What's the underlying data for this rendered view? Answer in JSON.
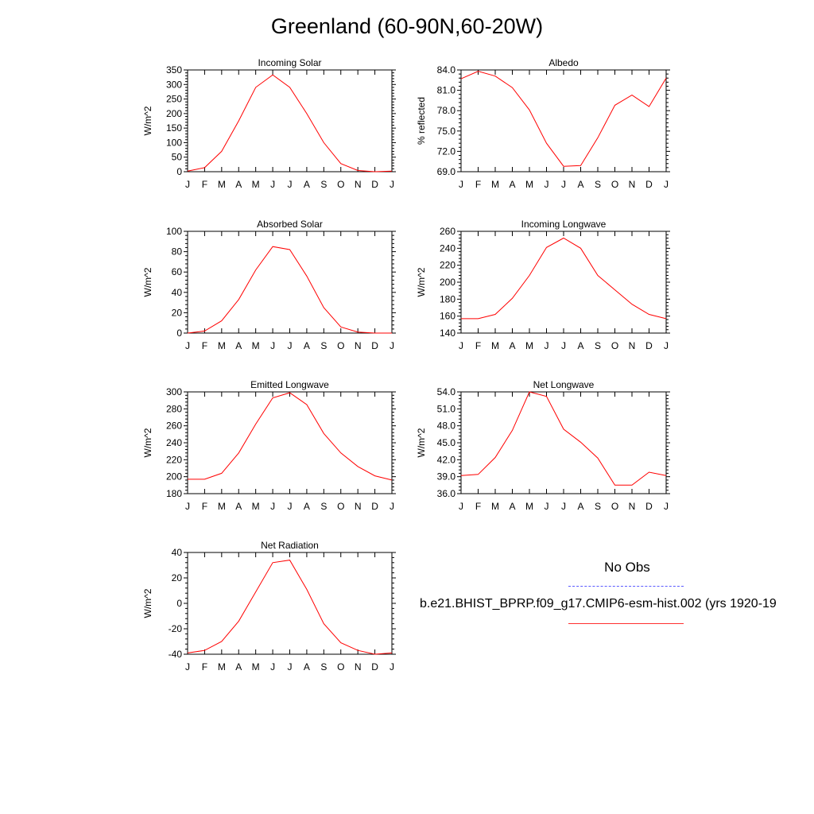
{
  "figure": {
    "title": "Greenland (60-90N,60-20W)"
  },
  "legend": {
    "title": "No Obs",
    "run_label": "b.e21.BHIST_BPRP.f09_g17.CMIP6-esm-hist.002 (yrs 1920-19",
    "run_color": "#ff0000",
    "obs_color": "#5a5aff"
  },
  "chart_data": [
    {
      "type": "line",
      "title": "Incoming Solar",
      "ylabel": "W/m^2",
      "categories": [
        "J",
        "F",
        "M",
        "A",
        "M",
        "J",
        "J",
        "A",
        "S",
        "O",
        "N",
        "D",
        "J"
      ],
      "ylim": [
        0,
        350
      ],
      "yticks": [
        0,
        50,
        100,
        150,
        200,
        250,
        300,
        350
      ],
      "ytick_labels": [
        "0",
        "50",
        "100",
        "150",
        "200",
        "250",
        "300",
        "350"
      ],
      "series": [
        {
          "values": [
            2,
            14,
            70,
            175,
            290,
            333,
            290,
            200,
            100,
            28,
            4,
            0,
            2
          ]
        }
      ]
    },
    {
      "type": "line",
      "title": "Albedo",
      "ylabel": "% reflected",
      "categories": [
        "J",
        "F",
        "M",
        "A",
        "M",
        "J",
        "J",
        "A",
        "S",
        "O",
        "N",
        "D",
        "J"
      ],
      "ylim": [
        69,
        84
      ],
      "yticks": [
        69,
        72,
        75,
        78,
        81,
        84
      ],
      "ytick_labels": [
        "69.0",
        "72.0",
        "75.0",
        "78.0",
        "81.0",
        "84.0"
      ],
      "series": [
        {
          "values": [
            82.7,
            83.8,
            83.1,
            81.4,
            78.1,
            73.2,
            69.8,
            69.9,
            74.0,
            78.8,
            80.3,
            78.6,
            82.8
          ]
        }
      ]
    },
    {
      "type": "line",
      "title": "Absorbed Solar",
      "ylabel": "W/m^2",
      "categories": [
        "J",
        "F",
        "M",
        "A",
        "M",
        "J",
        "J",
        "A",
        "S",
        "O",
        "N",
        "D",
        "J"
      ],
      "ylim": [
        0,
        100
      ],
      "yticks": [
        0,
        20,
        40,
        60,
        80,
        100
      ],
      "ytick_labels": [
        "0",
        "20",
        "40",
        "60",
        "80",
        "100"
      ],
      "series": [
        {
          "values": [
            0,
            2,
            12,
            33,
            62,
            85,
            82,
            56,
            25,
            6,
            1,
            0,
            0
          ]
        }
      ]
    },
    {
      "type": "line",
      "title": "Incoming Longwave",
      "ylabel": "W/m^2",
      "categories": [
        "J",
        "F",
        "M",
        "A",
        "M",
        "J",
        "J",
        "A",
        "S",
        "O",
        "N",
        "D",
        "J"
      ],
      "ylim": [
        140,
        260
      ],
      "yticks": [
        140,
        160,
        180,
        200,
        220,
        240,
        260
      ],
      "ytick_labels": [
        "140",
        "160",
        "180",
        "200",
        "220",
        "240",
        "260"
      ],
      "series": [
        {
          "values": [
            157,
            157,
            162,
            181,
            208,
            241,
            252,
            240,
            208,
            191,
            174,
            162,
            157
          ]
        }
      ]
    },
    {
      "type": "line",
      "title": "Emitted Longwave",
      "ylabel": "W/m^2",
      "categories": [
        "J",
        "F",
        "M",
        "A",
        "M",
        "J",
        "J",
        "A",
        "S",
        "O",
        "N",
        "D",
        "J"
      ],
      "ylim": [
        180,
        300
      ],
      "yticks": [
        180,
        200,
        220,
        240,
        260,
        280,
        300
      ],
      "ytick_labels": [
        "180",
        "200",
        "220",
        "240",
        "260",
        "280",
        "300"
      ],
      "series": [
        {
          "values": [
            197,
            197,
            204,
            228,
            262,
            293,
            299,
            285,
            251,
            228,
            212,
            201,
            196
          ]
        }
      ]
    },
    {
      "type": "line",
      "title": "Net Longwave",
      "ylabel": "W/m^2",
      "categories": [
        "J",
        "F",
        "M",
        "A",
        "M",
        "J",
        "J",
        "A",
        "S",
        "O",
        "N",
        "D",
        "J"
      ],
      "ylim": [
        36,
        54
      ],
      "yticks": [
        36,
        39,
        42,
        45,
        48,
        51,
        54
      ],
      "ytick_labels": [
        "36.0",
        "39.0",
        "42.0",
        "45.0",
        "48.0",
        "51.0",
        "54.0"
      ],
      "series": [
        {
          "values": [
            39.2,
            39.4,
            42.4,
            47.2,
            54.0,
            53.2,
            47.4,
            45.1,
            42.3,
            37.5,
            37.5,
            39.8,
            39.2
          ]
        }
      ]
    },
    {
      "type": "line",
      "title": "Net Radiation",
      "ylabel": "W/m^2",
      "categories": [
        "J",
        "F",
        "M",
        "A",
        "M",
        "J",
        "J",
        "A",
        "S",
        "O",
        "N",
        "D",
        "J"
      ],
      "ylim": [
        -40,
        40
      ],
      "yticks": [
        -40,
        -20,
        0,
        20,
        40
      ],
      "ytick_labels": [
        "-40",
        "-20",
        "0",
        "20",
        "40"
      ],
      "series": [
        {
          "values": [
            -39,
            -37,
            -30,
            -14,
            9,
            32,
            34,
            11,
            -16,
            -31,
            -37,
            -40,
            -39
          ]
        }
      ]
    }
  ]
}
